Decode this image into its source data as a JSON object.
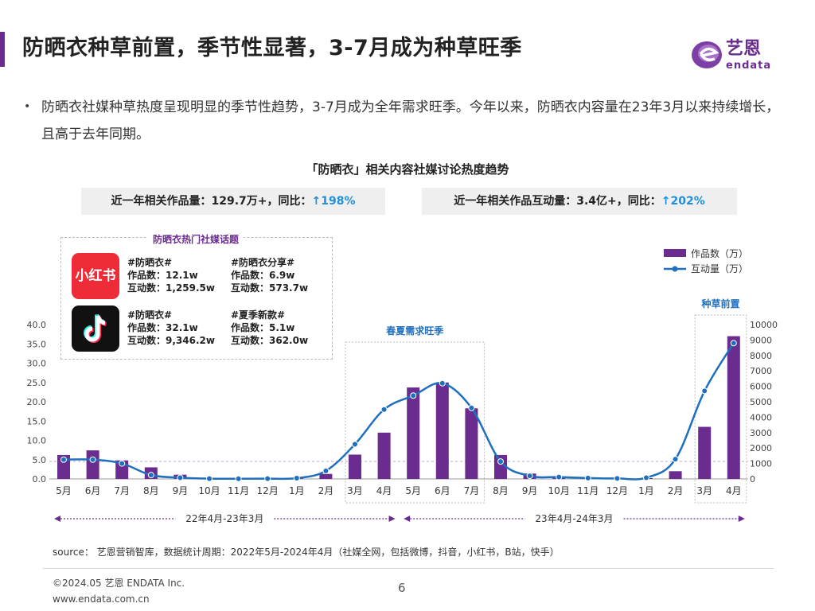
{
  "header": {
    "title": "防晒衣种草前置，季节性显著，3-7月成为种草旺季",
    "logo_text": "艺恩",
    "logo_sub": "endata"
  },
  "bullet": {
    "text": "防晒衣社媒种草热度呈现明显的季节性趋势，3-7月成为全年需求旺季。今年以来，防晒衣内容量在23年3月以来持续增长，且高于去年同期。"
  },
  "stats": {
    "works_label": "近一年相关作品量：129.7万+，同比：",
    "works_yoy": "↑198%",
    "interact_label": "近一年相关作品互动量：3.4亿+，同比：",
    "interact_yoy": "↑202%"
  },
  "topics": {
    "title": "防晒衣热门社媒话题",
    "xiaohongshu_icon": "小红书",
    "xiaohongshu": [
      {
        "tag": "#防晒衣#",
        "works": "作品数：12.1w",
        "interact": "互动数：1,259.5w"
      },
      {
        "tag": "#防晒衣分享#",
        "works": "作品数：6.9w",
        "interact": "互动数：573.7w"
      }
    ],
    "douyin": [
      {
        "tag": "#防晒衣#",
        "works": "作品数：32.1w",
        "interact": "互动数：9,346.2w"
      },
      {
        "tag": "#夏季新款#",
        "works": "作品数：5.1w",
        "interact": "互动数：362.0w"
      }
    ]
  },
  "chart_data": {
    "type": "bar+line",
    "title": "「防晒衣」相关内容社媒讨论热度趋势",
    "categories": [
      "5月",
      "6月",
      "7月",
      "8月",
      "9月",
      "10月",
      "11月",
      "12月",
      "1月",
      "2月",
      "3月",
      "4月",
      "5月",
      "6月",
      "7月",
      "8月",
      "9月",
      "10月",
      "11月",
      "12月",
      "1月",
      "2月",
      "3月",
      "4月"
    ],
    "series": [
      {
        "name": "作品数（万）",
        "type": "bar",
        "axis": "left",
        "color": "#6a2c8e",
        "values": [
          6.2,
          7.4,
          4.8,
          3.0,
          1.1,
          0.2,
          0.1,
          0.2,
          0.3,
          1.3,
          6.3,
          12.0,
          23.7,
          25.0,
          18.3,
          6.2,
          1.4,
          0.4,
          0.2,
          0.1,
          0.2,
          2.0,
          13.5,
          37.0
        ]
      },
      {
        "name": "互动量（万）",
        "type": "line",
        "axis": "right",
        "color": "#1f6fbf",
        "values": [
          1250,
          1250,
          1000,
          250,
          80,
          20,
          10,
          20,
          50,
          520,
          2250,
          4500,
          5400,
          6200,
          4600,
          1130,
          200,
          120,
          60,
          30,
          80,
          1280,
          5700,
          8800
        ]
      }
    ],
    "y_left": {
      "min": 0,
      "max": 40,
      "ticks": [
        "0.0",
        "5.0",
        "10.0",
        "15.0",
        "20.0",
        "25.0",
        "30.0",
        "35.0",
        "40.0"
      ]
    },
    "y_right": {
      "min": 0,
      "max": 10000,
      "ticks": [
        "0",
        "1000",
        "2000",
        "3000",
        "4000",
        "5000",
        "6000",
        "7000",
        "8000",
        "9000",
        "10000"
      ]
    },
    "highlights": [
      {
        "label": "春夏需求旺季",
        "from": 10,
        "to": 14
      },
      {
        "label": "种草前置",
        "from": 22,
        "to": 23
      }
    ],
    "periods": [
      {
        "label": "22年4月-23年3月",
        "from": 0,
        "to": 11
      },
      {
        "label": "23年4月-24年3月",
        "from": 12,
        "to": 23
      }
    ],
    "legend_position": "top-right"
  },
  "footer": {
    "source": "source： 艺恩营销智库，数据统计周期：2022年5月-2024年4月（社媒全网，包括微博，抖音，小红书，B站，快手）",
    "copyright": "©2024.05  艺恩 ENDATA Inc.",
    "website": "www.endata.com.cn",
    "page": "6"
  },
  "colors": {
    "purple": "#6a2c8e",
    "line_blue": "#1f6fbf",
    "accent_blue": "#1f8fd9"
  }
}
